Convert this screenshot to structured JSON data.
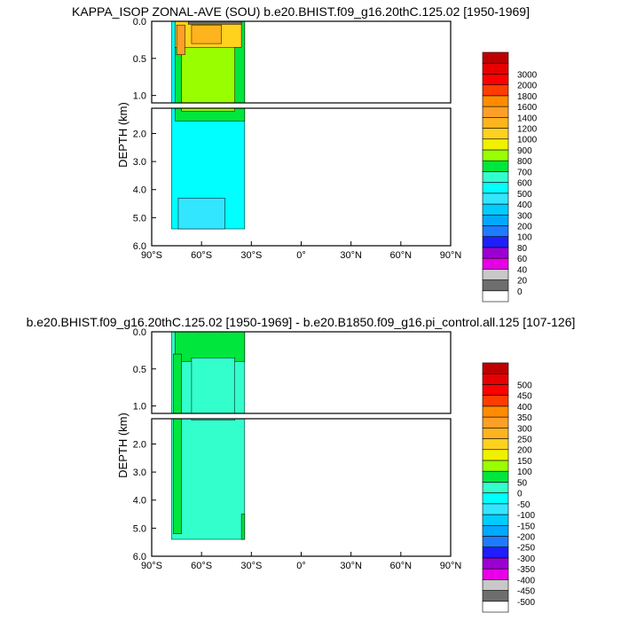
{
  "chart_data": [
    {
      "type": "heatmap",
      "title": "KAPPA_ISOP ZONAL-AVE (SOU) b.e20.BHIST.f09_g16.20thC.125.02 [1950-1969]",
      "ylabel": "DEPTH (km)",
      "xlabel": "",
      "x_ticks": [
        "90°S",
        "60°S",
        "30°S",
        "0°",
        "30°N",
        "60°N",
        "90°N"
      ],
      "xlim": [
        -90,
        90
      ],
      "upper_y_ticks": [
        "0.0",
        "0.5",
        "1.0"
      ],
      "upper_ylim": [
        0,
        1.1
      ],
      "lower_y_ticks": [
        "2.0",
        "3.0",
        "4.0",
        "5.0",
        "6.0"
      ],
      "lower_ylim": [
        1.1,
        6.0
      ],
      "data_xlim": [
        -78,
        -34
      ],
      "colorbar_levels": [
        "0",
        "20",
        "40",
        "60",
        "80",
        "100",
        "200",
        "300",
        "400",
        "500",
        "600",
        "700",
        "800",
        "900",
        "1000",
        "1200",
        "1400",
        "1600",
        "1800",
        "2000",
        "3000"
      ],
      "colorbar_colors": [
        "#ffffff",
        "#6e6e6e",
        "#c8c8c8",
        "#e600e6",
        "#9b00d2",
        "#1e1eff",
        "#1e7bff",
        "#00a8ff",
        "#00ccff",
        "#33e6ff",
        "#00ffff",
        "#33ffcc",
        "#00e63c",
        "#99ff00",
        "#f0f000",
        "#ffd21e",
        "#ffb41e",
        "#ff9f28",
        "#ff8c00",
        "#ff3c00",
        "#ff0000",
        "#e60000",
        "#be0000"
      ],
      "regions": [
        {
          "x_range": [
            -78,
            -34
          ],
          "depth_range": [
            0.0,
            5.4
          ],
          "value": 550
        },
        {
          "x_range": [
            -76,
            -34
          ],
          "depth_range": [
            0.0,
            1.55
          ],
          "value": 750
        },
        {
          "x_range": [
            -72,
            -40
          ],
          "depth_range": [
            0.0,
            1.2
          ],
          "value": 850
        },
        {
          "x_range": [
            -76,
            -36
          ],
          "depth_range": [
            0.0,
            0.35
          ],
          "value": 1100
        },
        {
          "x_range": [
            -66,
            -48
          ],
          "depth_range": [
            0.05,
            0.3
          ],
          "value": 1300
        },
        {
          "x_range": [
            -75,
            -70
          ],
          "depth_range": [
            0.05,
            0.45
          ],
          "value": 1500
        },
        {
          "x_range": [
            -68,
            -36
          ],
          "depth_range": [
            0.0,
            0.04
          ],
          "value": 0
        },
        {
          "x_range": [
            -74,
            -46
          ],
          "depth_range": [
            4.3,
            5.4
          ],
          "value": 400
        }
      ]
    },
    {
      "type": "heatmap",
      "title": "b.e20.BHIST.f09_g16.20thC.125.02 [1950-1969] - b.e20.B1850.f09_g16.pi_control.all.125 [107-126]",
      "ylabel": "DEPTH (km)",
      "xlabel": "",
      "x_ticks": [
        "90°S",
        "60°S",
        "30°S",
        "0°",
        "30°N",
        "60°N",
        "90°N"
      ],
      "xlim": [
        -90,
        90
      ],
      "upper_y_ticks": [
        "0.0",
        "0.5",
        "1.0"
      ],
      "upper_ylim": [
        0,
        1.1
      ],
      "lower_y_ticks": [
        "2.0",
        "3.0",
        "4.0",
        "5.0",
        "6.0"
      ],
      "lower_ylim": [
        1.1,
        6.0
      ],
      "data_xlim": [
        -78,
        -34
      ],
      "colorbar_levels": [
        "-500",
        "-450",
        "-400",
        "-350",
        "-300",
        "-250",
        "-200",
        "-150",
        "-100",
        "-50",
        "0",
        "50",
        "100",
        "150",
        "200",
        "250",
        "300",
        "350",
        "400",
        "450",
        "500"
      ],
      "colorbar_colors": [
        "#ffffff",
        "#6e6e6e",
        "#c8c8c8",
        "#e600e6",
        "#9b00d2",
        "#1e1eff",
        "#1e7bff",
        "#00a8ff",
        "#00ccff",
        "#33e6ff",
        "#00ffff",
        "#33ffcc",
        "#00e63c",
        "#99ff00",
        "#f0f000",
        "#ffd21e",
        "#ffb41e",
        "#ff9f28",
        "#ff8c00",
        "#ff3c00",
        "#ff0000",
        "#e60000",
        "#be0000"
      ],
      "regions": [
        {
          "x_range": [
            -78,
            -34
          ],
          "depth_range": [
            0.0,
            5.4
          ],
          "value": 25
        },
        {
          "x_range": [
            -76,
            -34
          ],
          "depth_range": [
            0.0,
            0.4
          ],
          "value": 60
        },
        {
          "x_range": [
            -77,
            -72
          ],
          "depth_range": [
            0.3,
            5.2
          ],
          "value": 60
        },
        {
          "x_range": [
            -66,
            -40
          ],
          "depth_range": [
            0.35,
            1.15
          ],
          "value": 25
        },
        {
          "x_range": [
            -36,
            -34
          ],
          "depth_range": [
            4.5,
            5.4
          ],
          "value": 60
        }
      ]
    }
  ]
}
